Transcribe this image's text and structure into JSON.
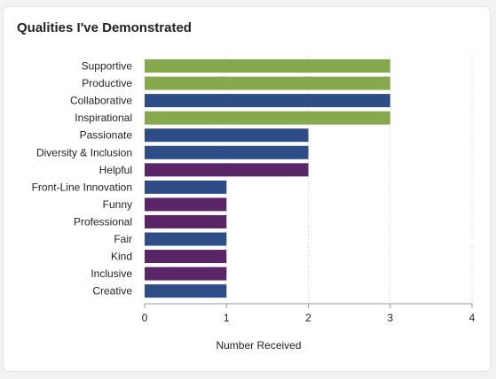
{
  "card": {
    "title": "Qualities I've Demonstrated"
  },
  "chart_data": {
    "type": "bar",
    "orientation": "horizontal",
    "title": "Qualities I've Demonstrated",
    "xlabel": "Number Received",
    "ylabel": "",
    "xlim": [
      0,
      4
    ],
    "x_ticks": [
      0,
      1,
      2,
      3,
      4
    ],
    "grid": "vertical dotted",
    "legend": "none",
    "categories": [
      "Supportive",
      "Productive",
      "Collaborative",
      "Inspirational",
      "Passionate",
      "Diversity & Inclusion",
      "Helpful",
      "Front-Line Innovation",
      "Funny",
      "Professional",
      "Fair",
      "Kind",
      "Inclusive",
      "Creative"
    ],
    "values": [
      3,
      3,
      3,
      3,
      2,
      2,
      2,
      1,
      1,
      1,
      1,
      1,
      1,
      1
    ],
    "colors": [
      "#86a94e",
      "#86a94e",
      "#2e4c86",
      "#86a94e",
      "#2e4c86",
      "#2e4c86",
      "#5a2566",
      "#2e4c86",
      "#5a2566",
      "#5a2566",
      "#2e4c86",
      "#5a2566",
      "#5a2566",
      "#2e4c86"
    ]
  }
}
